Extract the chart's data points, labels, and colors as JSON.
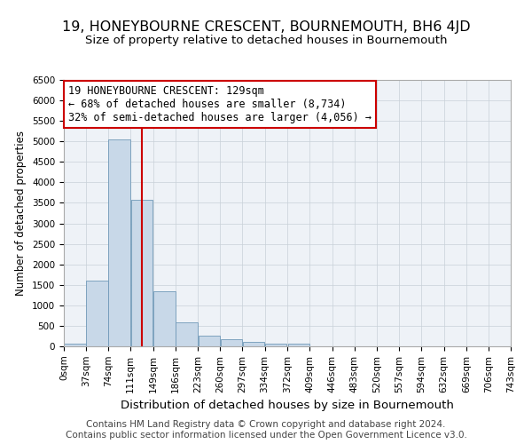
{
  "title": "19, HONEYBOURNE CRESCENT, BOURNEMOUTH, BH6 4JD",
  "subtitle": "Size of property relative to detached houses in Bournemouth",
  "xlabel": "Distribution of detached houses by size in Bournemouth",
  "ylabel": "Number of detached properties",
  "footer_line1": "Contains HM Land Registry data © Crown copyright and database right 2024.",
  "footer_line2": "Contains public sector information licensed under the Open Government Licence v3.0.",
  "annotation_line1": "19 HONEYBOURNE CRESCENT: 129sqm",
  "annotation_line2": "← 68% of detached houses are smaller (8,734)",
  "annotation_line3": "32% of semi-detached houses are larger (4,056) →",
  "property_size": 129,
  "bin_labels": [
    "0sqm",
    "37sqm",
    "74sqm",
    "111sqm",
    "149sqm",
    "186sqm",
    "223sqm",
    "260sqm",
    "297sqm",
    "334sqm",
    "372sqm",
    "409sqm",
    "446sqm",
    "483sqm",
    "520sqm",
    "557sqm",
    "594sqm",
    "632sqm",
    "669sqm",
    "706sqm",
    "743sqm"
  ],
  "bin_edges": [
    0,
    37,
    74,
    111,
    149,
    186,
    223,
    260,
    297,
    334,
    372,
    409,
    446,
    483,
    520,
    557,
    594,
    632,
    669,
    706,
    743
  ],
  "bar_heights": [
    60,
    1600,
    5050,
    3580,
    1350,
    580,
    260,
    175,
    100,
    55,
    60,
    10,
    0,
    0,
    0,
    0,
    0,
    0,
    0,
    0
  ],
  "bar_color": "#c8d8e8",
  "bar_edge_color": "#7099b8",
  "red_line_color": "#cc0000",
  "annotation_box_color": "#ffffff",
  "annotation_box_edge": "#cc0000",
  "grid_color": "#c8d0d8",
  "bg_color": "#eef2f7",
  "ylim": [
    0,
    6500
  ],
  "yticks": [
    0,
    500,
    1000,
    1500,
    2000,
    2500,
    3000,
    3500,
    4000,
    4500,
    5000,
    5500,
    6000,
    6500
  ],
  "title_fontsize": 11.5,
  "subtitle_fontsize": 9.5,
  "xlabel_fontsize": 9.5,
  "ylabel_fontsize": 8.5,
  "tick_fontsize": 7.5,
  "annotation_fontsize": 8.5,
  "footer_fontsize": 7.5
}
